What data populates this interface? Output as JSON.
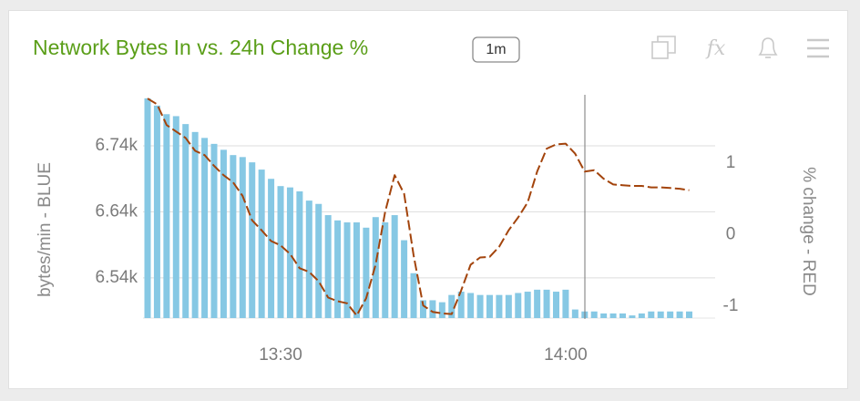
{
  "chart_data": {
    "type": "combo",
    "title": "Network Bytes In vs. 24h Change %",
    "interval": "1m",
    "formula_icon": "fx",
    "y_label": "bytes/min - BLUE",
    "y2_label": "% change - RED",
    "x": [
      "13:16",
      "13:17",
      "13:18",
      "13:19",
      "13:20",
      "13:21",
      "13:22",
      "13:23",
      "13:24",
      "13:25",
      "13:26",
      "13:27",
      "13:28",
      "13:29",
      "13:30",
      "13:31",
      "13:32",
      "13:33",
      "13:34",
      "13:35",
      "13:36",
      "13:37",
      "13:38",
      "13:39",
      "13:40",
      "13:41",
      "13:42",
      "13:43",
      "13:44",
      "13:45",
      "13:46",
      "13:47",
      "13:48",
      "13:49",
      "13:50",
      "13:51",
      "13:52",
      "13:53",
      "13:54",
      "13:55",
      "13:56",
      "13:57",
      "13:58",
      "13:59",
      "14:00",
      "14:01",
      "14:02",
      "14:03",
      "14:04",
      "14:05",
      "14:06",
      "14:07",
      "14:08",
      "14:09",
      "14:10",
      "14:11",
      "14:12",
      "14:13"
    ],
    "xticks": [
      "13:30",
      "14:00"
    ],
    "ylim": [
      6479,
      6816
    ],
    "yticks": [
      {
        "value": 6540,
        "label": "6.54k"
      },
      {
        "value": 6640,
        "label": "6.64k"
      },
      {
        "value": 6740,
        "label": "6.74k"
      }
    ],
    "y2lim": [
      -1.166,
      1.94
    ],
    "y2ticks": [
      -1,
      0,
      1
    ],
    "grid": true,
    "series": [
      {
        "type": "bar",
        "color": "#86c8e4",
        "axis": "y",
        "values": [
          6812,
          6801,
          6788,
          6785,
          6773,
          6761,
          6752,
          6743,
          6734,
          6726,
          6723,
          6715,
          6704,
          6690,
          6679,
          6677,
          6671,
          6657,
          6652,
          6635,
          6627,
          6624,
          6624,
          6616,
          6632,
          6624,
          6635,
          6597,
          6547,
          6506,
          6506,
          6503,
          6514,
          6519,
          6517,
          6514,
          6514,
          6514,
          6514,
          6517,
          6519,
          6522,
          6522,
          6519,
          6522,
          6492,
          6489,
          6489,
          6486,
          6486,
          6486,
          6483,
          6486,
          6489,
          6489,
          6489,
          6489,
          6489
        ]
      },
      {
        "type": "line",
        "color": "#a3440c",
        "axis": "y2",
        "line_style": "dashed",
        "values": [
          1.9,
          1.82,
          1.53,
          1.44,
          1.35,
          1.17,
          1.11,
          0.96,
          0.83,
          0.73,
          0.54,
          0.2,
          0.06,
          -0.09,
          -0.15,
          -0.27,
          -0.47,
          -0.52,
          -0.65,
          -0.88,
          -0.93,
          -0.96,
          -1.13,
          -0.89,
          -0.42,
          0.32,
          0.83,
          0.57,
          -0.29,
          -0.99,
          -1.08,
          -1.1,
          -1.11,
          -0.78,
          -0.42,
          -0.32,
          -0.31,
          -0.17,
          0.06,
          0.24,
          0.45,
          0.88,
          1.2,
          1.26,
          1.27,
          1.13,
          0.88,
          0.9,
          0.78,
          0.7,
          0.69,
          0.68,
          0.68,
          0.66,
          0.66,
          0.65,
          0.64,
          0.62
        ]
      }
    ]
  }
}
